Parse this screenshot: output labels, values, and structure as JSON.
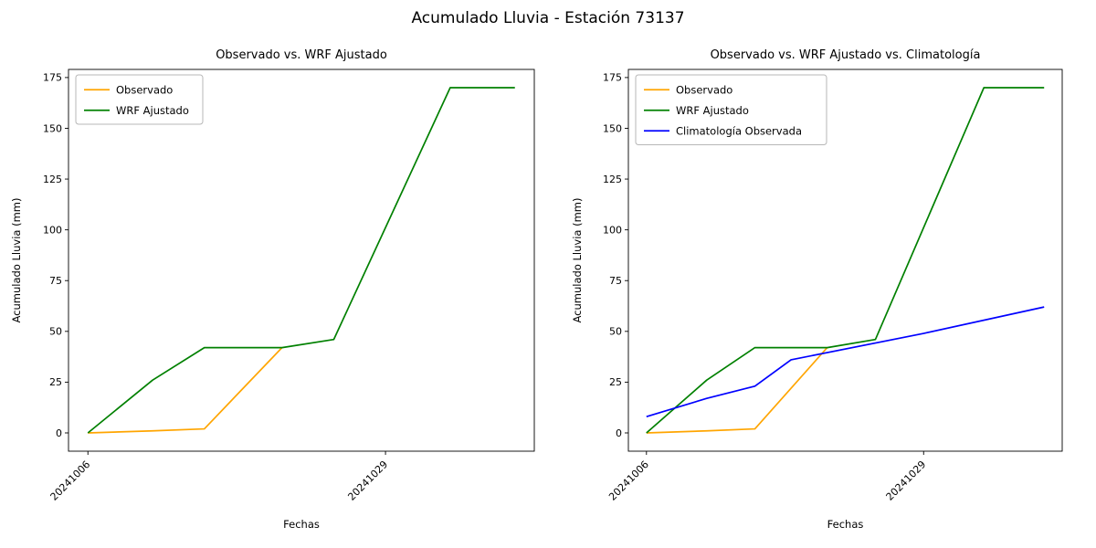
{
  "figure": {
    "title": "Acumulado Lluvia - Estación 73137",
    "background": "#ffffff"
  },
  "chart_data": [
    {
      "type": "line",
      "title": "Observado vs. WRF Ajustado",
      "xlabel": "Fechas",
      "ylabel": "Acumulado Lluvia (mm)",
      "x_unit": "days_since_20241006",
      "xlim": [
        -1.5,
        34.5
      ],
      "ylim": [
        -9,
        179
      ],
      "yticks": [
        0,
        25,
        50,
        75,
        100,
        125,
        150,
        175
      ],
      "xticks": [
        {
          "x": 0,
          "label": "20241006"
        },
        {
          "x": 23,
          "label": "20241029"
        }
      ],
      "xtick_rotation": 45,
      "grid": false,
      "legend_position": "upper-left",
      "series": [
        {
          "name": "Observado",
          "color": "#ffa500",
          "x": [
            0,
            5,
            9,
            15
          ],
          "y": [
            0,
            1,
            2,
            42
          ]
        },
        {
          "name": "WRF Ajustado",
          "color": "#008000",
          "x": [
            0,
            5,
            9,
            15,
            19,
            28,
            33
          ],
          "y": [
            0,
            26,
            42,
            42,
            46,
            170,
            170
          ]
        }
      ]
    },
    {
      "type": "line",
      "title": "Observado vs. WRF Ajustado vs. Climatología",
      "xlabel": "Fechas",
      "ylabel": "Acumulado Lluvia (mm)",
      "x_unit": "days_since_20241006",
      "xlim": [
        -1.5,
        34.5
      ],
      "ylim": [
        -9,
        179
      ],
      "yticks": [
        0,
        25,
        50,
        75,
        100,
        125,
        150,
        175
      ],
      "xticks": [
        {
          "x": 0,
          "label": "20241006"
        },
        {
          "x": 23,
          "label": "20241029"
        }
      ],
      "xtick_rotation": 45,
      "grid": false,
      "legend_position": "upper-left",
      "series": [
        {
          "name": "Observado",
          "color": "#ffa500",
          "x": [
            0,
            5,
            9,
            15
          ],
          "y": [
            0,
            1,
            2,
            42
          ]
        },
        {
          "name": "WRF Ajustado",
          "color": "#008000",
          "x": [
            0,
            5,
            9,
            15,
            19,
            28,
            33
          ],
          "y": [
            0,
            26,
            42,
            42,
            46,
            170,
            170
          ]
        },
        {
          "name": "Climatología Observada",
          "color": "#0000ff",
          "x": [
            0,
            5,
            9,
            12,
            23,
            33
          ],
          "y": [
            8,
            17,
            23,
            36,
            49,
            62
          ]
        }
      ]
    }
  ]
}
